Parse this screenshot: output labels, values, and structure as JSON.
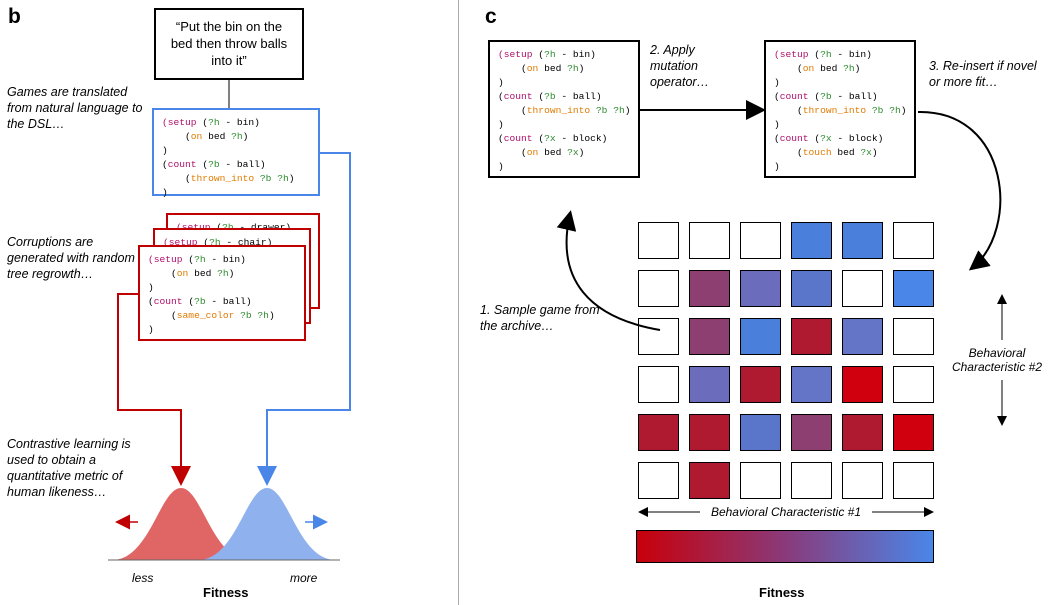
{
  "panel_b": {
    "letter": "b",
    "quote": "“Put the bin on the bed then throw balls into it”",
    "note_translate": "Games are translated from natural language to the DSL…",
    "note_corrupt": "Corruptions are generated with random tree regrowth…",
    "note_contrast": "Contrastive learning is used to obtain a quantitative metric of human likeness…",
    "axis_less": "less",
    "axis_more": "more",
    "axis_title": "Fitness",
    "colors": {
      "red": "#e06666",
      "blue": "#8fb1ee",
      "red_line": "#c00000",
      "blue_line": "#4a86e8"
    }
  },
  "panel_c": {
    "letter": "c",
    "step1": "1. Sample game from the archive…",
    "step2": "2. Apply mutation operator…",
    "step3": "3. Re-insert if novel or more fit…",
    "bc1": "Behavioral Characteristic #1",
    "bc2": "Behavioral Characteristic #2",
    "colorbar_title": "Fitness",
    "grid_colors": [
      [
        "#ffffff",
        "#ffffff",
        "#ffffff",
        "#4a7fdb",
        "#4a7fdb",
        "#ffffff"
      ],
      [
        "#ffffff",
        "#8e3f72",
        "#6c6cbd",
        "#5a76cb",
        "#ffffff",
        "#4a86e8"
      ],
      [
        "#ffffff",
        "#8e3f72",
        "#4a7fdb",
        "#b01a30",
        "#6474c6",
        "#ffffff"
      ],
      [
        "#ffffff",
        "#6c6cbd",
        "#b01a30",
        "#6474c6",
        "#d0000e",
        "#ffffff"
      ],
      [
        "#b01a30",
        "#b01a30",
        "#5a76cb",
        "#8e3f72",
        "#b01a30",
        "#d0000e"
      ],
      [
        "#ffffff",
        "#b01a30",
        "#ffffff",
        "#ffffff",
        "#ffffff",
        "#ffffff"
      ]
    ],
    "colorbar": {
      "from": "#c8000a",
      "to": "#4a86e8"
    }
  }
}
